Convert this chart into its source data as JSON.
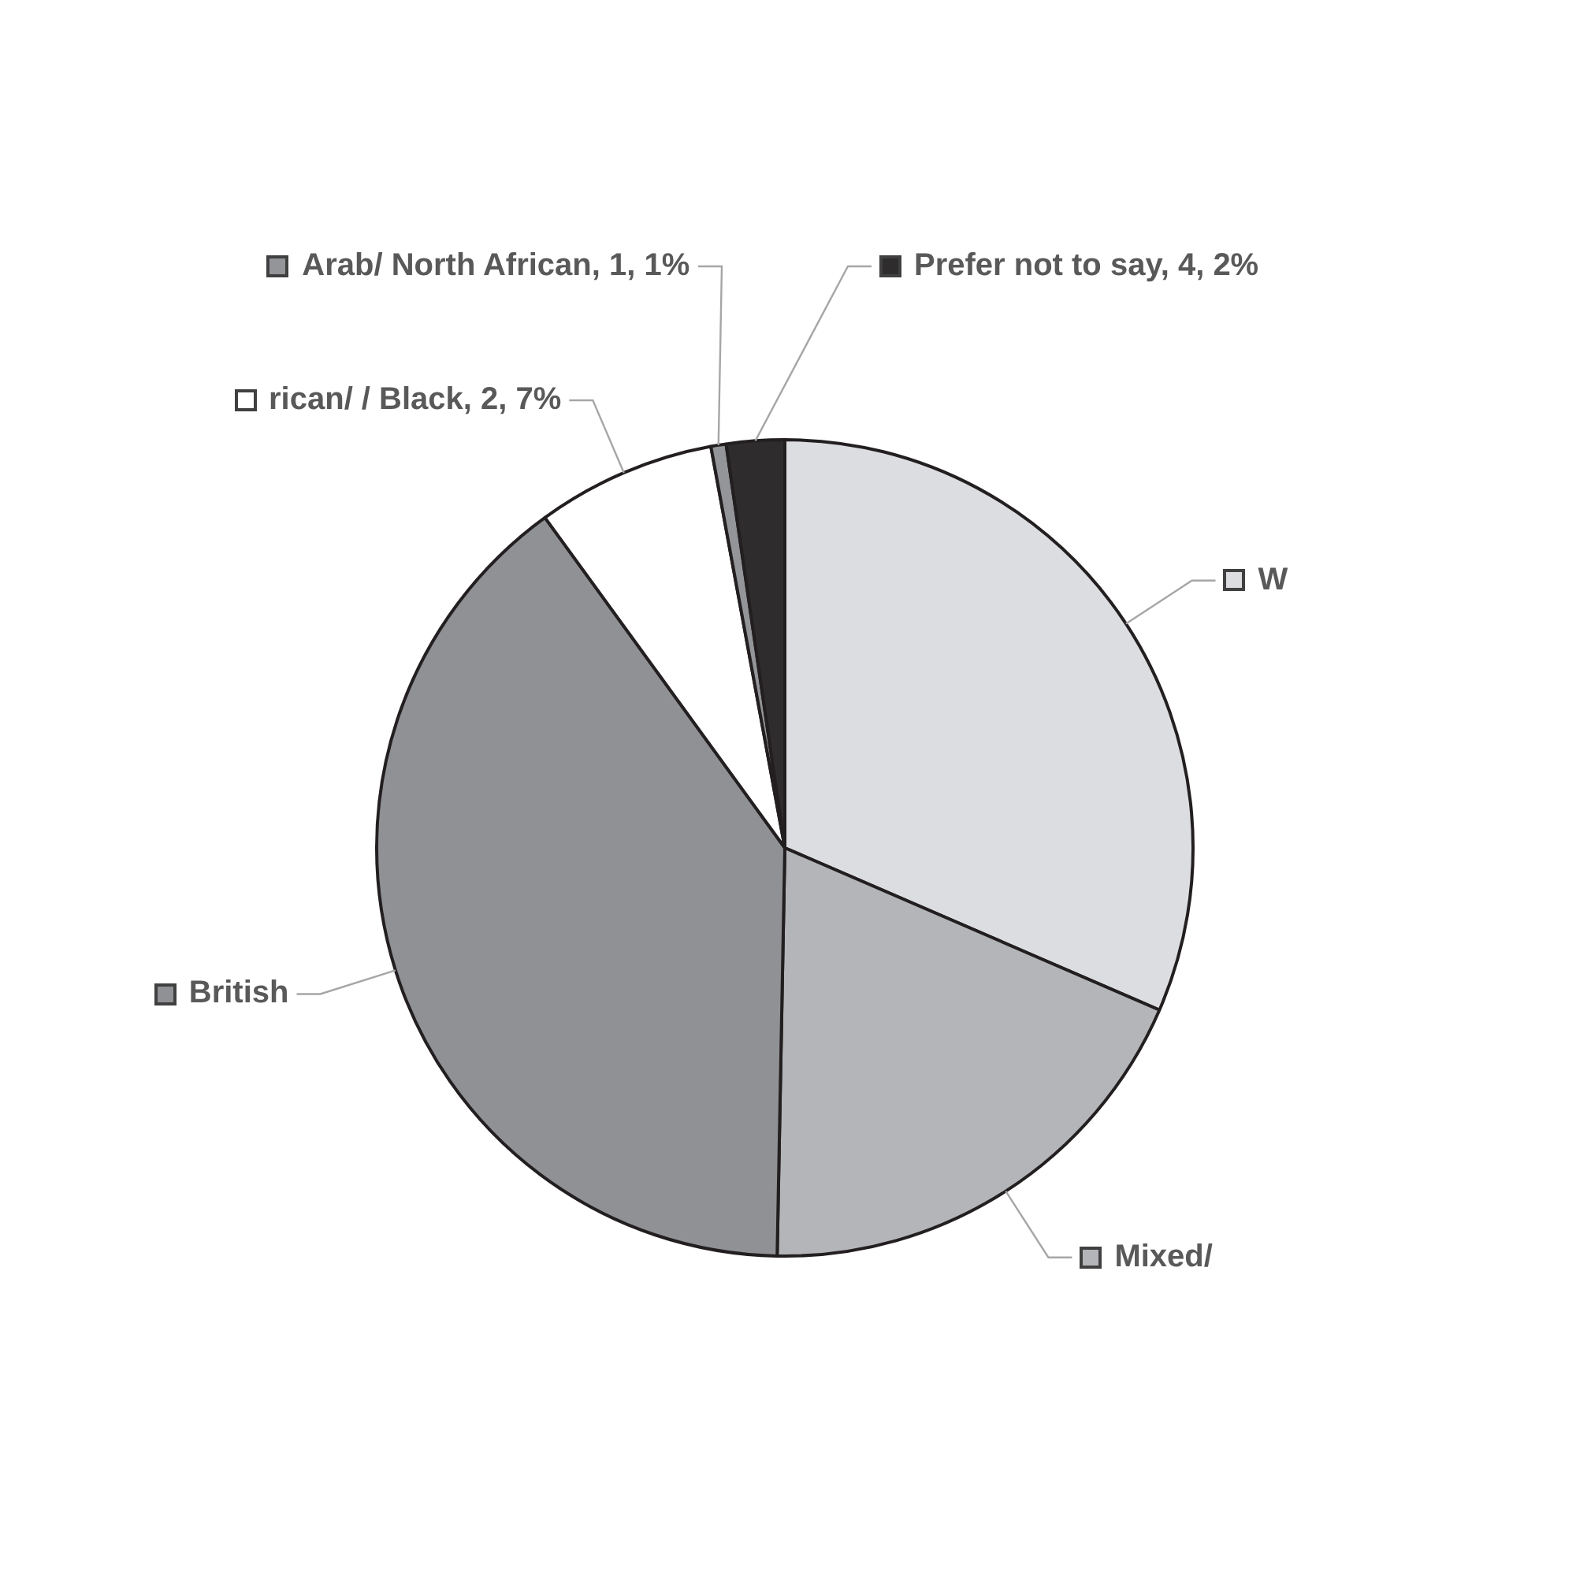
{
  "chart_data": {
    "type": "pie",
    "categories": [
      "W",
      "Mixed/",
      "British",
      "rican/ / Black",
      "Arab/ North African",
      "Prefer not to say"
    ],
    "values": [
      31.5,
      18.8,
      39.7,
      7.1,
      0.6,
      2.3
    ],
    "value_labels": [
      null,
      null,
      null,
      "2, 7%",
      "1, 1%",
      "4, 2%"
    ],
    "colors": [
      "#dcdde0",
      "#b3b5b8",
      "#8f9194",
      "#ffffff",
      "#939598",
      "#2f2c2d"
    ],
    "legend": "top left"
  }
}
